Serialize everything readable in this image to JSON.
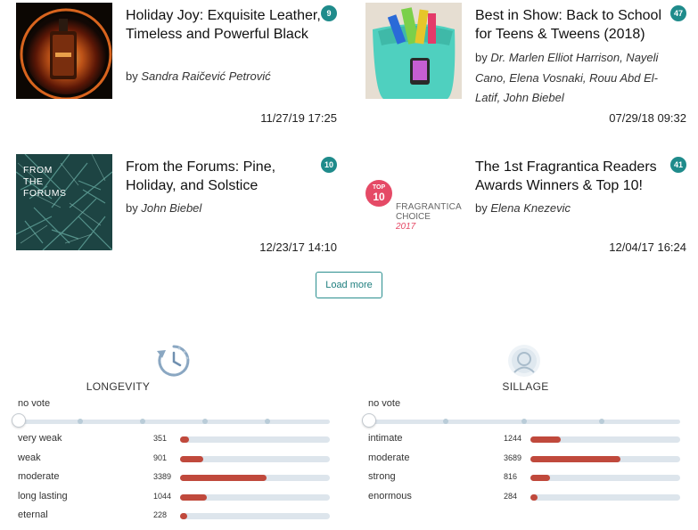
{
  "articles": [
    {
      "title": "Holiday Joy: Exquisite Leather, Timeless and Powerful Black",
      "by": "by",
      "authors": "Sandra Raičević Petrović",
      "date": "11/27/19 17:25",
      "comments": "9"
    },
    {
      "title": "Best in Show: Back to School for Teens & Tweens (2018)",
      "by": "by",
      "authors": "Dr. Marlen Elliot Harrison, Nayeli Cano, Elena Vosnaki, Rouu Abd El-Latif, John Biebel",
      "date": "07/29/18 09:32",
      "comments": "47"
    },
    {
      "title": "From the Forums: Pine, Holiday, and Solstice",
      "by": "by",
      "authors": "John Biebel",
      "date": "12/23/17 14:10",
      "comments": "10"
    },
    {
      "title": "The 1st Fragrantica Readers Awards Winners & Top 10!",
      "by": "by",
      "authors": "Elena Knezevic",
      "date": "12/04/17 16:24",
      "comments": "41"
    }
  ],
  "thumb_text": {
    "forums": [
      "FROM",
      "THE",
      "FORUMS"
    ],
    "choice_top": "TOP",
    "choice_num": "10",
    "choice_brand": "FRAGRANTICA",
    "choice_word": "CHOICE",
    "choice_year": "2017"
  },
  "load_more": "Load more",
  "longevity": {
    "heading": "LONGEVITY",
    "no_vote": "no vote",
    "icon": "clock-icon",
    "rows": [
      {
        "label": "very weak",
        "count": "351",
        "fraction": 0.06
      },
      {
        "label": "weak",
        "count": "901",
        "fraction": 0.155
      },
      {
        "label": "moderate",
        "count": "3389",
        "fraction": 0.575
      },
      {
        "label": "long lasting",
        "count": "1044",
        "fraction": 0.18
      },
      {
        "label": "eternal",
        "count": "228",
        "fraction": 0.04
      }
    ]
  },
  "sillage": {
    "heading": "SILLAGE",
    "no_vote": "no vote",
    "icon": "person-aura-icon",
    "rows": [
      {
        "label": "intimate",
        "count": "1244",
        "fraction": 0.2
      },
      {
        "label": "moderate",
        "count": "3689",
        "fraction": 0.6
      },
      {
        "label": "strong",
        "count": "816",
        "fraction": 0.13
      },
      {
        "label": "enormous",
        "count": "284",
        "fraction": 0.04
      }
    ]
  },
  "colors": {
    "accent": "#1f8b8b",
    "bar": "#c0493c",
    "track": "#dde5ec"
  }
}
